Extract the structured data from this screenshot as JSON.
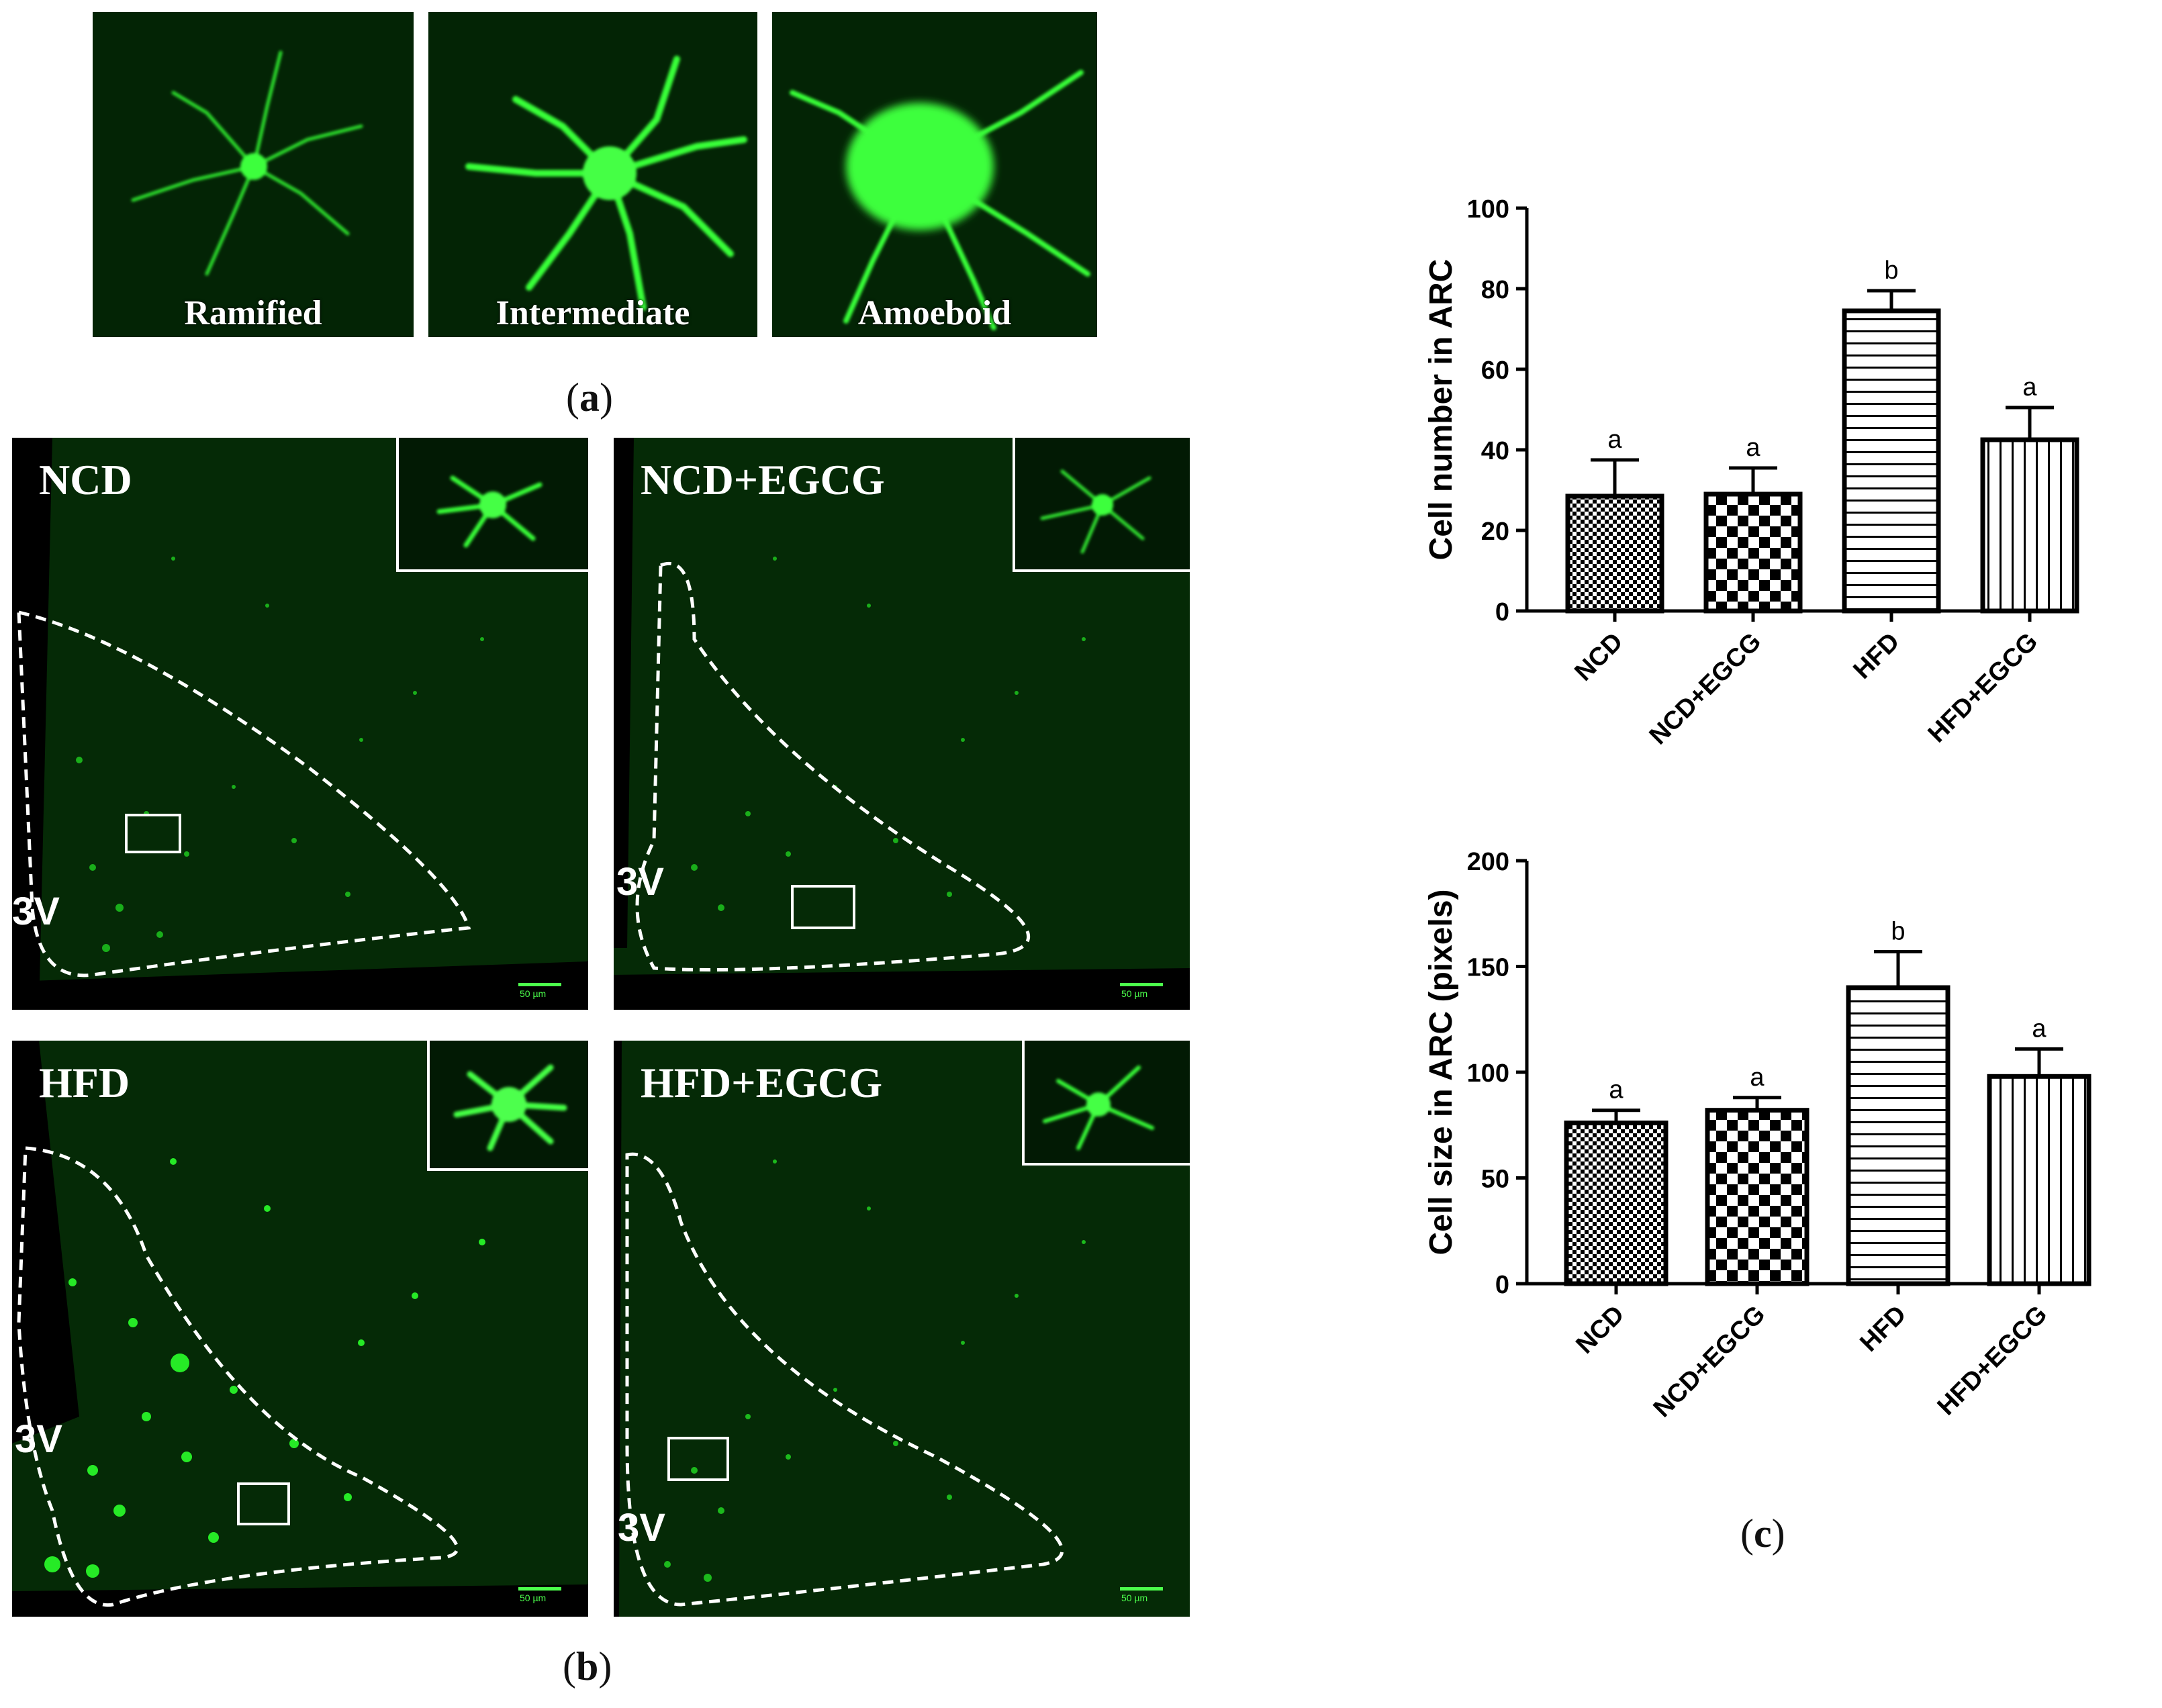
{
  "panel_a": {
    "caption_letter": "a",
    "images": [
      {
        "label": "Ramified"
      },
      {
        "label": "Intermediate"
      },
      {
        "label": "Amoeboid"
      }
    ]
  },
  "panel_b": {
    "caption_letter": "b",
    "images": [
      {
        "label": "NCD",
        "ventricle": "3V",
        "scale": "50 µm"
      },
      {
        "label": "NCD+EGCG",
        "ventricle": "3V",
        "scale": "50 µm"
      },
      {
        "label": "HFD",
        "ventricle": "3V",
        "scale": "50 µm"
      },
      {
        "label": "HFD+EGCG",
        "ventricle": "3V",
        "scale": "50 µm"
      }
    ]
  },
  "panel_c": {
    "caption_letter": "c"
  },
  "colors": {
    "fluorescence": "#22ff22",
    "background": "#021a04",
    "bar_stroke": "#000000"
  },
  "chart_data": [
    {
      "type": "bar",
      "ylabel": "Cell number in ARC",
      "xlabel": "",
      "ylim": [
        0,
        100
      ],
      "yticks": [
        0,
        20,
        40,
        60,
        80,
        100
      ],
      "categories": [
        "NCD",
        "NCD+EGCG",
        "HFD",
        "HFD+EGCG"
      ],
      "values": [
        28.5,
        29,
        74.5,
        42.5
      ],
      "errors": [
        9,
        6.5,
        5,
        8
      ],
      "significance": [
        "a",
        "a",
        "b",
        "a"
      ],
      "patterns": [
        "fine-check",
        "checkerboard",
        "horizontal-lines",
        "vertical-lines"
      ]
    },
    {
      "type": "bar",
      "ylabel": "Cell size in ARC (pixels)",
      "xlabel": "",
      "ylim": [
        0,
        200
      ],
      "yticks": [
        0,
        50,
        100,
        150,
        200
      ],
      "categories": [
        "NCD",
        "NCD+EGCG",
        "HFD",
        "HFD+EGCG"
      ],
      "values": [
        76,
        82,
        140,
        98
      ],
      "errors": [
        6,
        6,
        17,
        13
      ],
      "significance": [
        "a",
        "a",
        "b",
        "a"
      ],
      "patterns": [
        "fine-check",
        "checkerboard",
        "horizontal-lines",
        "vertical-lines"
      ]
    }
  ]
}
